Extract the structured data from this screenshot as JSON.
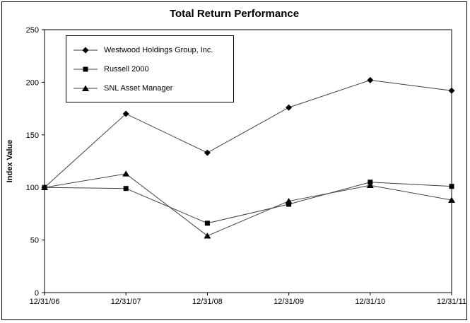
{
  "chart_data": {
    "type": "line",
    "title": "Total Return Performance",
    "ylabel": "Index Value",
    "xlabel": "",
    "categories": [
      "12/31/06",
      "12/31/07",
      "12/31/08",
      "12/31/09",
      "12/31/10",
      "12/31/11"
    ],
    "series": [
      {
        "name": "Westwood Holdings Group, Inc.",
        "marker": "diamond",
        "values": [
          100,
          170,
          133,
          176,
          202,
          192
        ]
      },
      {
        "name": "Russell 2000",
        "marker": "square",
        "values": [
          100,
          99,
          66,
          84,
          105,
          101
        ]
      },
      {
        "name": "SNL Asset Manager",
        "marker": "triangle",
        "values": [
          100,
          113,
          54,
          87,
          102,
          88
        ]
      }
    ],
    "ylim": [
      0,
      250
    ],
    "yticks": [
      0,
      50,
      100,
      150,
      200,
      250
    ],
    "grid": false,
    "legend_position": "top-left-inside",
    "line_color": "#404040",
    "marker_color": "#000000",
    "border_color": "#000000"
  }
}
